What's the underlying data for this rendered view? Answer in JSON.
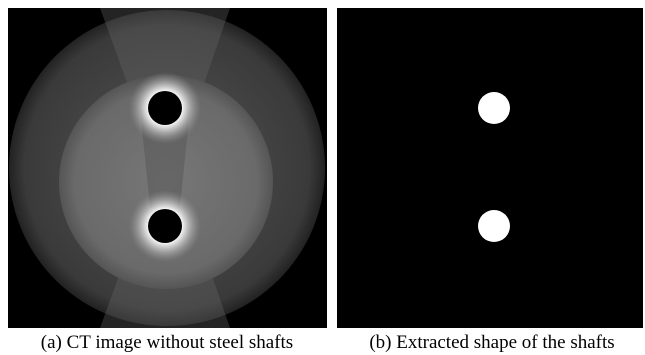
{
  "figure": {
    "panels": [
      {
        "caption": "(a) CT image without steel shafts"
      },
      {
        "caption": "(b) Extracted shape of the shafts"
      }
    ]
  }
}
